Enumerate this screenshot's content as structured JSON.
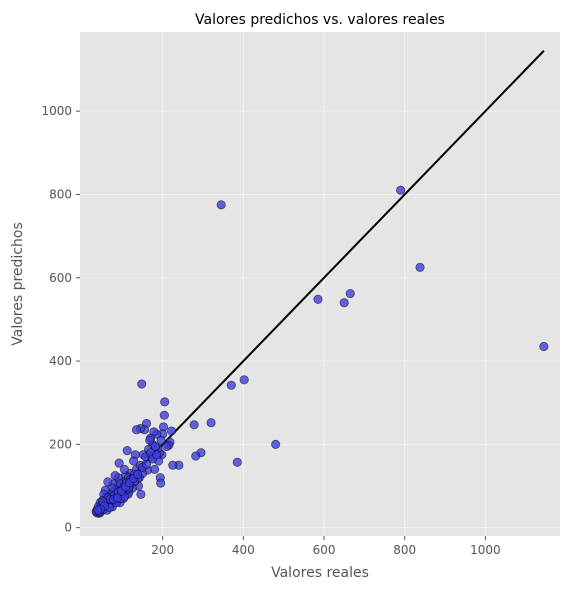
{
  "chart_data": {
    "type": "scatter",
    "title": "Valores predichos vs. valores reales",
    "xlabel": "Valores reales",
    "ylabel": "Valores predichos",
    "xlim": [
      -5,
      1185
    ],
    "ylim": [
      -20,
      1190
    ],
    "xticks": [
      200,
      400,
      600,
      800,
      1000
    ],
    "yticks": [
      0,
      200,
      400,
      600,
      800,
      1000
    ],
    "grid": true,
    "legend": "none",
    "colors": {
      "panel_background": "#e5e5e5",
      "point_fill": "#3b3bdc",
      "point_edge": "#000000",
      "reference_line": "#000000"
    },
    "reference_line": {
      "x": [
        35,
        1145
      ],
      "y": [
        35,
        1145
      ]
    },
    "series": [
      {
        "points": [
          [
            1145,
            435
          ],
          [
            838,
            625
          ],
          [
            790,
            810
          ],
          [
            665,
            562
          ],
          [
            650,
            540
          ],
          [
            585,
            548
          ],
          [
            480,
            200
          ],
          [
            402,
            355
          ],
          [
            385,
            157
          ],
          [
            370,
            342
          ],
          [
            345,
            775
          ],
          [
            320,
            252
          ],
          [
            295,
            180
          ],
          [
            282,
            172
          ],
          [
            278,
            247
          ],
          [
            240,
            150
          ],
          [
            225,
            150
          ],
          [
            222,
            232
          ],
          [
            218,
            205
          ],
          [
            215,
            198
          ],
          [
            210,
            195
          ],
          [
            205,
            302
          ],
          [
            204,
            270
          ],
          [
            202,
            242
          ],
          [
            200,
            225
          ],
          [
            198,
            175
          ],
          [
            196,
            210
          ],
          [
            194,
            120
          ],
          [
            195,
            107
          ],
          [
            192,
            180
          ],
          [
            190,
            160
          ],
          [
            188,
            190
          ],
          [
            185,
            225
          ],
          [
            180,
            140
          ],
          [
            178,
            230
          ],
          [
            175,
            200
          ],
          [
            172,
            170
          ],
          [
            170,
            215
          ],
          [
            168,
            210
          ],
          [
            165,
            188
          ],
          [
            162,
            138
          ],
          [
            160,
            250
          ],
          [
            155,
            235
          ],
          [
            152,
            175
          ],
          [
            150,
            130
          ],
          [
            148,
            345
          ],
          [
            146,
            80
          ],
          [
            145,
            238
          ],
          [
            142,
            120
          ],
          [
            140,
            100
          ],
          [
            138,
            118
          ],
          [
            135,
            235
          ],
          [
            132,
            175
          ],
          [
            130,
            110
          ],
          [
            128,
            160
          ],
          [
            125,
            95
          ],
          [
            122,
            120
          ],
          [
            120,
            130
          ],
          [
            118,
            100
          ],
          [
            116,
            85
          ],
          [
            114,
            80
          ],
          [
            112,
            185
          ],
          [
            110,
            90
          ],
          [
            108,
            125
          ],
          [
            105,
            140
          ],
          [
            103,
            70
          ],
          [
            100,
            110
          ],
          [
            98,
            95
          ],
          [
            96,
            80
          ],
          [
            94,
            60
          ],
          [
            92,
            155
          ],
          [
            90,
            120
          ],
          [
            88,
            100
          ],
          [
            86,
            70
          ],
          [
            84,
            90
          ],
          [
            82,
            125
          ],
          [
            80,
            60
          ],
          [
            78,
            105
          ],
          [
            76,
            85
          ],
          [
            74,
            95
          ],
          [
            72,
            70
          ],
          [
            70,
            55
          ],
          [
            68,
            80
          ],
          [
            66,
            65
          ],
          [
            64,
            110
          ],
          [
            62,
            50
          ],
          [
            60,
            75
          ],
          [
            58,
            90
          ],
          [
            56,
            60
          ],
          [
            55,
            45
          ],
          [
            54,
            80
          ],
          [
            52,
            55
          ],
          [
            50,
            65
          ],
          [
            48,
            40
          ],
          [
            46,
            50
          ],
          [
            45,
            60
          ],
          [
            44,
            35
          ],
          [
            42,
            45
          ],
          [
            40,
            50
          ],
          [
            38,
            35
          ],
          [
            36,
            40
          ],
          [
            35,
            38
          ],
          [
            50,
            48
          ],
          [
            58,
            55
          ],
          [
            65,
            72
          ],
          [
            72,
            62
          ],
          [
            85,
            75
          ],
          [
            95,
            105
          ],
          [
            105,
            100
          ],
          [
            115,
            120
          ],
          [
            125,
            118
          ],
          [
            135,
            140
          ],
          [
            145,
            150
          ],
          [
            158,
            170
          ],
          [
            170,
            180
          ],
          [
            182,
            195
          ],
          [
            60,
            58
          ],
          [
            70,
            68
          ],
          [
            80,
            78
          ],
          [
            90,
            85
          ],
          [
            100,
            92
          ],
          [
            110,
            108
          ],
          [
            120,
            115
          ],
          [
            130,
            128
          ],
          [
            75,
            50
          ],
          [
            85,
            60
          ],
          [
            95,
            70
          ],
          [
            105,
            75
          ],
          [
            115,
            95
          ],
          [
            62,
            42
          ],
          [
            68,
            48
          ],
          [
            78,
            68
          ],
          [
            88,
            72
          ],
          [
            98,
            88
          ],
          [
            108,
            98
          ],
          [
            118,
            108
          ],
          [
            128,
            118
          ],
          [
            138,
            128
          ],
          [
            150,
            145
          ],
          [
            160,
            152
          ],
          [
            175,
            165
          ],
          [
            185,
            175
          ],
          [
            48,
            52
          ],
          [
            52,
            62
          ],
          [
            56,
            52
          ],
          [
            42,
            38
          ],
          [
            46,
            44
          ],
          [
            39,
            42
          ]
        ]
      }
    ]
  }
}
